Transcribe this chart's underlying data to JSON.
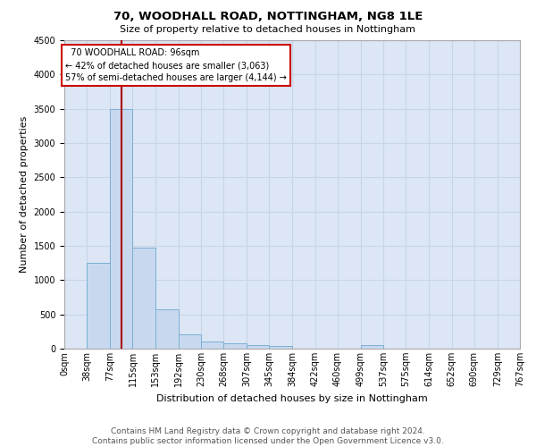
{
  "title_line1": "70, WOODHALL ROAD, NOTTINGHAM, NG8 1LE",
  "title_line2": "Size of property relative to detached houses in Nottingham",
  "xlabel": "Distribution of detached houses by size in Nottingham",
  "ylabel": "Number of detached properties",
  "annotation_line1": "  70 WOODHALL ROAD: 96sqm",
  "annotation_line2": "← 42% of detached houses are smaller (3,063)",
  "annotation_line3": "57% of semi-detached houses are larger (4,144) →",
  "property_size": 96,
  "bin_edges": [
    0,
    38,
    77,
    115,
    153,
    192,
    230,
    268,
    307,
    345,
    384,
    422,
    460,
    499,
    537,
    575,
    614,
    652,
    690,
    729,
    767
  ],
  "bin_labels": [
    "0sqm",
    "38sqm",
    "77sqm",
    "115sqm",
    "153sqm",
    "192sqm",
    "230sqm",
    "268sqm",
    "307sqm",
    "345sqm",
    "384sqm",
    "422sqm",
    "460sqm",
    "499sqm",
    "537sqm",
    "575sqm",
    "614sqm",
    "652sqm",
    "690sqm",
    "729sqm",
    "767sqm"
  ],
  "bar_counts": [
    5,
    1250,
    3500,
    1470,
    575,
    215,
    105,
    75,
    50,
    40,
    0,
    0,
    0,
    50,
    0,
    0,
    0,
    0,
    0,
    0
  ],
  "bar_color": "#c8d9ef",
  "bar_edge_color": "#7bafd4",
  "vline_color": "#aa0000",
  "vline_x": 96,
  "ylim": [
    0,
    4500
  ],
  "yticks": [
    0,
    500,
    1000,
    1500,
    2000,
    2500,
    3000,
    3500,
    4000,
    4500
  ],
  "grid_color": "#c8d4e8",
  "background_color": "#dce6f5",
  "footer_line1": "Contains HM Land Registry data © Crown copyright and database right 2024.",
  "footer_line2": "Contains public sector information licensed under the Open Government Licence v3.0.",
  "title_fontsize": 9.5,
  "subtitle_fontsize": 8,
  "ylabel_fontsize": 8,
  "xlabel_fontsize": 8,
  "tick_fontsize": 7,
  "footer_fontsize": 6.5
}
